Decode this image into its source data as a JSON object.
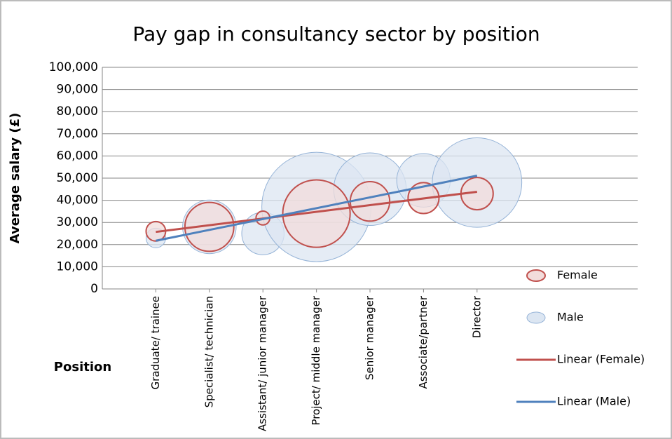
{
  "chart_data": {
    "type": "bubble",
    "title": "Pay gap in consultancy sector by position",
    "y_label": "Average salary (£)",
    "x_label": "Position",
    "x": [
      1,
      2,
      3,
      4,
      5,
      6,
      7
    ],
    "xlim": [
      0,
      10
    ],
    "xticks": [
      {
        "value": 1,
        "label": "Graduate/ trainee"
      },
      {
        "value": 2,
        "label": "Specialist/ technician"
      },
      {
        "value": 3,
        "label": "Assistant/ junior manager"
      },
      {
        "value": 4,
        "label": "Project/ middle manager"
      },
      {
        "value": 5,
        "label": "Senior manager"
      },
      {
        "value": 6,
        "label": "Associate/partner"
      },
      {
        "value": 7,
        "label": "Director"
      }
    ],
    "ylim": [
      0,
      100000
    ],
    "yticks": [
      0,
      {
        "value": 10000,
        "label": "10,000"
      },
      {
        "value": 20000,
        "label": "20,000"
      },
      {
        "value": 30000,
        "label": "30,000"
      },
      {
        "value": 40000,
        "label": "40,000"
      },
      {
        "value": 50000,
        "label": "50,000"
      },
      {
        "value": 60000,
        "label": "60,000"
      },
      {
        "value": 70000,
        "label": "70,000"
      },
      {
        "value": 80000,
        "label": "80,000"
      },
      {
        "value": 90000,
        "label": "90,000"
      },
      {
        "value": 100000,
        "label": "100,000"
      }
    ],
    "grid": true,
    "legend": "right",
    "series": [
      {
        "name": "Female",
        "color": "#c0504d",
        "fill": "#f2dcdb",
        "values": [
          26000,
          28000,
          32000,
          34000,
          39500,
          41000,
          43000
        ],
        "sizes": [
          3.2,
          20,
          1.6,
          38,
          13,
          8,
          8.7
        ]
      },
      {
        "name": "Male",
        "color": "#95b3d7",
        "fill": "#dce6f2",
        "values": [
          23000,
          28000,
          25000,
          37000,
          45000,
          49000,
          48000
        ],
        "sizes": [
          3.2,
          24,
          15,
          100,
          44,
          24,
          67
        ]
      }
    ],
    "trendlines": [
      {
        "name": "Linear (Female)",
        "color": "#c0504d"
      },
      {
        "name": "Linear (Male)",
        "color": "#4f81bd"
      }
    ]
  }
}
